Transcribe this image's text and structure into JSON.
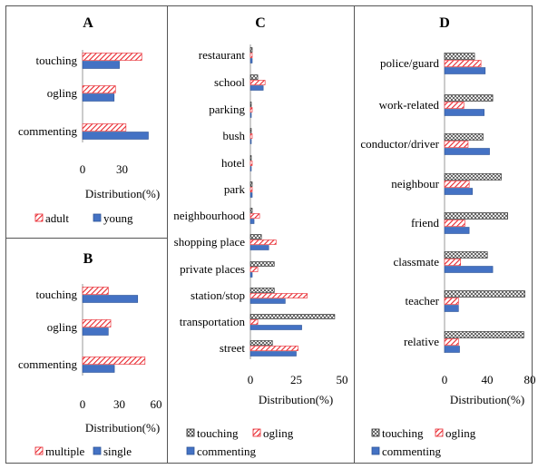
{
  "colors": {
    "red": "#e8242b",
    "blue": "#4472c4",
    "blue_edge": "#2f5597",
    "black": "#222222"
  },
  "chart_data": [
    {
      "panel": "A",
      "type": "bar",
      "orientation": "horizontal",
      "title": "A",
      "categories": [
        "touching",
        "ogling",
        "commenting"
      ],
      "series": [
        {
          "name": "adult",
          "pattern": "red-hatch",
          "values": [
            45,
            25,
            33
          ]
        },
        {
          "name": "young",
          "pattern": "blue-solid",
          "values": [
            28,
            24,
            50
          ]
        }
      ],
      "xlabel": "Distribution(%)",
      "xlim": [
        0,
        60
      ],
      "xticks": [
        "0",
        "30"
      ],
      "legend_position": "bottom"
    },
    {
      "panel": "B",
      "type": "bar",
      "orientation": "horizontal",
      "title": "B",
      "categories": [
        "touching",
        "ogling",
        "commenting"
      ],
      "series": [
        {
          "name": "multiple",
          "pattern": "red-hatch",
          "values": [
            21,
            23,
            51
          ]
        },
        {
          "name": "single",
          "pattern": "blue-solid",
          "values": [
            45,
            21,
            26
          ]
        }
      ],
      "xlabel": "Distribution(%)",
      "xlim": [
        0,
        60
      ],
      "xticks": [
        "0",
        "30",
        "60"
      ],
      "legend_position": "bottom"
    },
    {
      "panel": "C",
      "type": "bar",
      "orientation": "horizontal",
      "title": "C",
      "categories": [
        "restaurant",
        "school",
        "parking",
        "bush",
        "hotel",
        "park",
        "neighbourhood",
        "shopping place",
        "private places",
        "station/stop",
        "transportation",
        "street"
      ],
      "series": [
        {
          "name": "touching",
          "pattern": "black-crosshatch",
          "values": [
            1,
            4,
            0.5,
            0.3,
            0.3,
            1,
            1,
            6,
            13,
            13,
            46,
            12
          ]
        },
        {
          "name": "ogling",
          "pattern": "red-hatch",
          "values": [
            1,
            8,
            1,
            1,
            1,
            1,
            5,
            14,
            4,
            31,
            4,
            26
          ]
        },
        {
          "name": "commenting",
          "pattern": "blue-solid",
          "values": [
            1,
            7,
            0.5,
            0.3,
            0.3,
            1,
            2,
            10,
            1,
            19,
            28,
            25
          ]
        }
      ],
      "xlabel": "Distribution(%)",
      "xlim": [
        0,
        50
      ],
      "xticks": [
        "0",
        "25",
        "50"
      ],
      "legend_position": "bottom"
    },
    {
      "panel": "D",
      "type": "bar",
      "orientation": "horizontal",
      "title": "D",
      "categories": [
        "police/guard",
        "work-related",
        "conductor/driver",
        "neighbour",
        "friend",
        "classmate",
        "teacher",
        "relative"
      ],
      "series": [
        {
          "name": "touching",
          "pattern": "black-crosshatch",
          "values": [
            28,
            45,
            36,
            53,
            59,
            40,
            75,
            74
          ]
        },
        {
          "name": "ogling",
          "pattern": "red-hatch",
          "values": [
            34,
            18,
            22,
            23,
            19,
            15,
            13,
            13
          ]
        },
        {
          "name": "commenting",
          "pattern": "blue-solid",
          "values": [
            38,
            37,
            42,
            26,
            23,
            45,
            13,
            14
          ]
        }
      ],
      "xlabel": "Distribution(%)",
      "xlim": [
        0,
        80
      ],
      "xticks": [
        "0",
        "40",
        "80"
      ],
      "legend_position": "bottom"
    }
  ]
}
